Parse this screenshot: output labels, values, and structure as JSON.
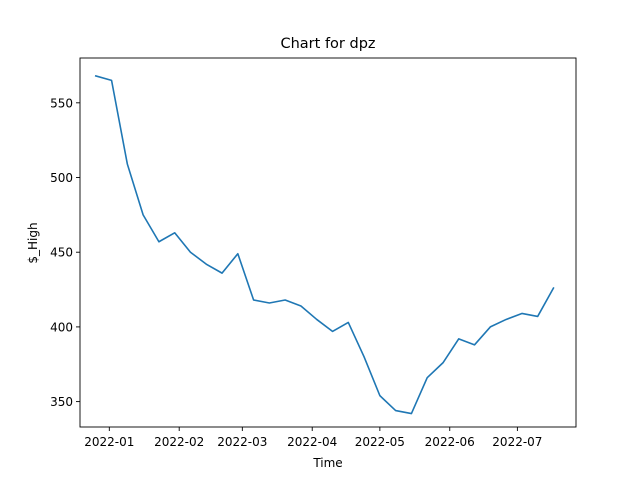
{
  "chart_data": {
    "type": "line",
    "title": "Chart for dpz",
    "xlabel": "Time",
    "ylabel": "$_High",
    "grid": false,
    "legend": false,
    "x_range": [
      "2021-12-19",
      "2022-07-27"
    ],
    "y_range": [
      333,
      580
    ],
    "x_ticks": [
      {
        "date": "2022-01-01",
        "label": "2022-01"
      },
      {
        "date": "2022-02-01",
        "label": "2022-02"
      },
      {
        "date": "2022-03-01",
        "label": "2022-03"
      },
      {
        "date": "2022-04-01",
        "label": "2022-04"
      },
      {
        "date": "2022-05-01",
        "label": "2022-05"
      },
      {
        "date": "2022-06-01",
        "label": "2022-06"
      },
      {
        "date": "2022-07-01",
        "label": "2022-07"
      }
    ],
    "y_ticks": [
      350,
      400,
      450,
      500,
      550
    ],
    "series": [
      {
        "color": "#1f77b4",
        "points": [
          {
            "x": "2021-12-26",
            "y": 568
          },
          {
            "x": "2022-01-02",
            "y": 565
          },
          {
            "x": "2022-01-09",
            "y": 509
          },
          {
            "x": "2022-01-16",
            "y": 475
          },
          {
            "x": "2022-01-23",
            "y": 457
          },
          {
            "x": "2022-01-30",
            "y": 463
          },
          {
            "x": "2022-02-06",
            "y": 450
          },
          {
            "x": "2022-02-13",
            "y": 442
          },
          {
            "x": "2022-02-20",
            "y": 436
          },
          {
            "x": "2022-02-27",
            "y": 449
          },
          {
            "x": "2022-03-06",
            "y": 418
          },
          {
            "x": "2022-03-13",
            "y": 416
          },
          {
            "x": "2022-03-20",
            "y": 418
          },
          {
            "x": "2022-03-27",
            "y": 414
          },
          {
            "x": "2022-04-03",
            "y": 405
          },
          {
            "x": "2022-04-10",
            "y": 397
          },
          {
            "x": "2022-04-17",
            "y": 403
          },
          {
            "x": "2022-04-24",
            "y": 380
          },
          {
            "x": "2022-05-01",
            "y": 354
          },
          {
            "x": "2022-05-08",
            "y": 344
          },
          {
            "x": "2022-05-15",
            "y": 342
          },
          {
            "x": "2022-05-22",
            "y": 366
          },
          {
            "x": "2022-05-29",
            "y": 376
          },
          {
            "x": "2022-06-05",
            "y": 392
          },
          {
            "x": "2022-06-12",
            "y": 388
          },
          {
            "x": "2022-06-19",
            "y": 400
          },
          {
            "x": "2022-06-26",
            "y": 405
          },
          {
            "x": "2022-07-03",
            "y": 409
          },
          {
            "x": "2022-07-10",
            "y": 407
          },
          {
            "x": "2022-07-17",
            "y": 426
          }
        ]
      }
    ]
  }
}
